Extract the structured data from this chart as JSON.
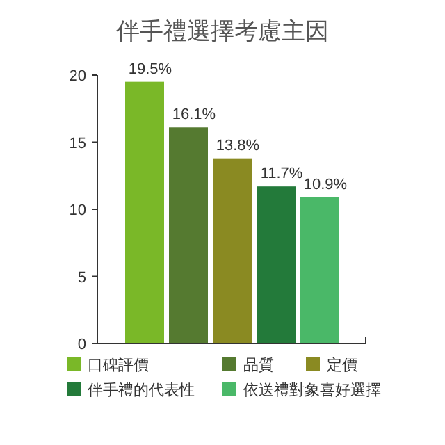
{
  "chart_data": {
    "type": "bar",
    "title": "伴手禮選擇考慮主因",
    "categories": [
      null
    ],
    "series": [
      {
        "name": "口碑評價",
        "color": "#7ab828",
        "values": [
          19.5
        ],
        "value_labels": [
          "19.5%"
        ]
      },
      {
        "name": "品質",
        "color": "#557a30",
        "values": [
          16.1
        ],
        "value_labels": [
          "16.1%"
        ]
      },
      {
        "name": "定價",
        "color": "#8a8a22",
        "values": [
          13.8
        ],
        "value_labels": [
          "13.8%"
        ]
      },
      {
        "name": "伴手禮的代表性",
        "color": "#237a3a",
        "values": [
          11.7
        ],
        "value_labels": [
          "11.7%"
        ]
      },
      {
        "name": "依送禮對象喜好選擇",
        "color": "#4ab868",
        "values": [
          10.9
        ],
        "value_labels": [
          "10.9%"
        ]
      }
    ],
    "ylim": [
      0,
      20
    ],
    "yticks": [
      0,
      5,
      10,
      15,
      20
    ],
    "grid": false,
    "legend": "bottom"
  }
}
